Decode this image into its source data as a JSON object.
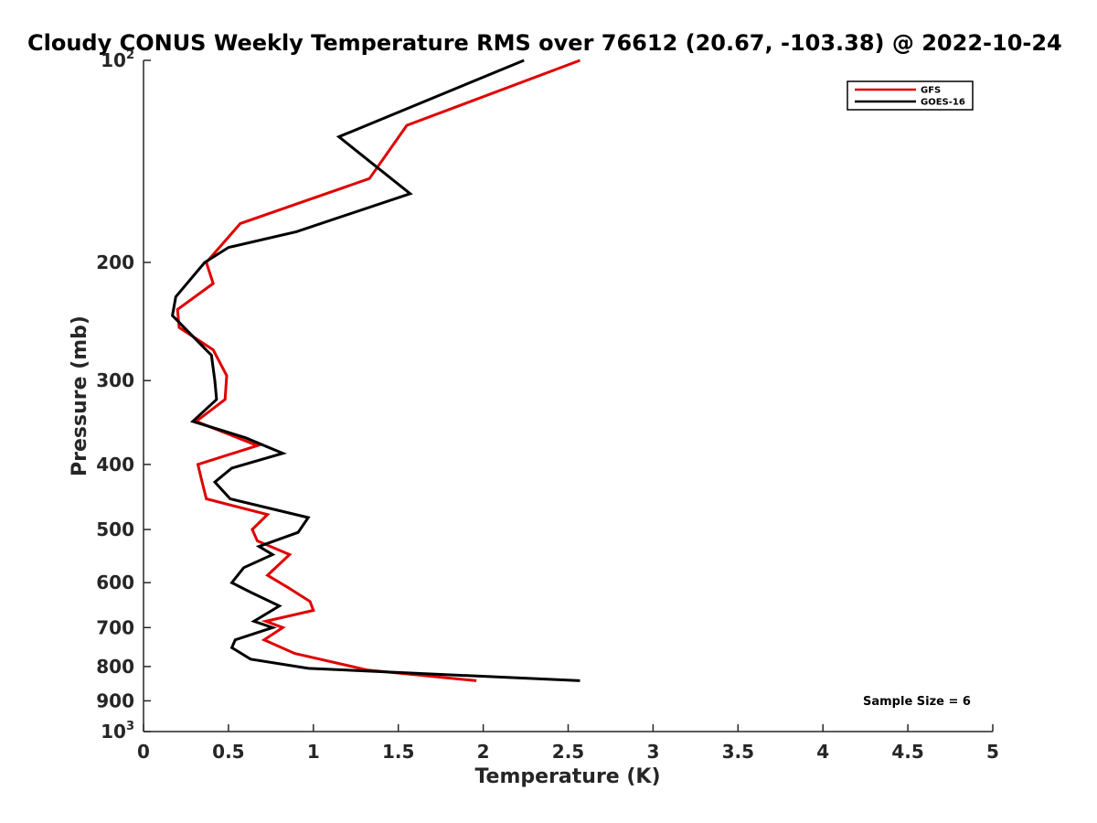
{
  "chart_data": {
    "type": "line",
    "title": "Cloudy CONUS Weekly Temperature RMS over 76612 (20.67, -103.38) @ 2022-10-24",
    "xlabel": "Temperature (K)",
    "ylabel": "Pressure (mb)",
    "xlim": [
      0,
      5
    ],
    "ylim": [
      100,
      1000
    ],
    "yscale": "log",
    "y_reversed": true,
    "x_ticks": [
      0,
      0.5,
      1,
      1.5,
      2,
      2.5,
      3,
      3.5,
      4,
      4.5,
      5
    ],
    "x_tick_labels": [
      "0",
      "0.5",
      "1",
      "1.5",
      "2",
      "2.5",
      "3",
      "3.5",
      "4",
      "4.5",
      "5"
    ],
    "y_ticks": [
      {
        "value": 100,
        "base": "10",
        "exp": "2"
      },
      {
        "value": 200,
        "label": "200"
      },
      {
        "value": 300,
        "label": "300"
      },
      {
        "value": 400,
        "label": "400"
      },
      {
        "value": 500,
        "label": "500"
      },
      {
        "value": 600,
        "label": "600"
      },
      {
        "value": 700,
        "label": "700"
      },
      {
        "value": 800,
        "label": "800"
      },
      {
        "value": 900,
        "label": "900"
      },
      {
        "value": 1000,
        "base": "10",
        "exp": "3"
      }
    ],
    "legend_position": "top-right",
    "annotation": "Sample Size = 6",
    "series": [
      {
        "name": "GFS",
        "color": "#e00000",
        "points": [
          [
            2.57,
            100
          ],
          [
            1.55,
            125
          ],
          [
            1.33,
            150
          ],
          [
            0.57,
            175
          ],
          [
            0.37,
            200
          ],
          [
            0.41,
            215
          ],
          [
            0.2,
            235
          ],
          [
            0.21,
            250
          ],
          [
            0.41,
            270
          ],
          [
            0.49,
            295
          ],
          [
            0.48,
            320
          ],
          [
            0.31,
            345
          ],
          [
            0.67,
            375
          ],
          [
            0.32,
            400
          ],
          [
            0.34,
            420
          ],
          [
            0.37,
            450
          ],
          [
            0.73,
            475
          ],
          [
            0.64,
            500
          ],
          [
            0.67,
            520
          ],
          [
            0.86,
            545
          ],
          [
            0.73,
            585
          ],
          [
            0.85,
            610
          ],
          [
            0.98,
            640
          ],
          [
            1.0,
            660
          ],
          [
            0.72,
            685
          ],
          [
            0.82,
            700
          ],
          [
            0.71,
            730
          ],
          [
            0.89,
            765
          ],
          [
            1.32,
            810
          ],
          [
            1.96,
            840
          ]
        ]
      },
      {
        "name": "GOES-16",
        "color": "#000000",
        "points": [
          [
            2.24,
            100
          ],
          [
            1.15,
            130
          ],
          [
            1.57,
            158
          ],
          [
            0.9,
            180
          ],
          [
            0.5,
            190
          ],
          [
            0.36,
            200
          ],
          [
            0.19,
            225
          ],
          [
            0.17,
            240
          ],
          [
            0.4,
            275
          ],
          [
            0.42,
            300
          ],
          [
            0.43,
            320
          ],
          [
            0.29,
            345
          ],
          [
            0.6,
            365
          ],
          [
            0.82,
            385
          ],
          [
            0.52,
            405
          ],
          [
            0.42,
            425
          ],
          [
            0.51,
            450
          ],
          [
            0.97,
            480
          ],
          [
            0.91,
            505
          ],
          [
            0.68,
            530
          ],
          [
            0.76,
            545
          ],
          [
            0.59,
            570
          ],
          [
            0.52,
            600
          ],
          [
            0.63,
            620
          ],
          [
            0.8,
            650
          ],
          [
            0.65,
            685
          ],
          [
            0.76,
            700
          ],
          [
            0.54,
            730
          ],
          [
            0.52,
            750
          ],
          [
            0.63,
            780
          ],
          [
            0.97,
            805
          ],
          [
            2.57,
            840
          ]
        ]
      }
    ]
  }
}
